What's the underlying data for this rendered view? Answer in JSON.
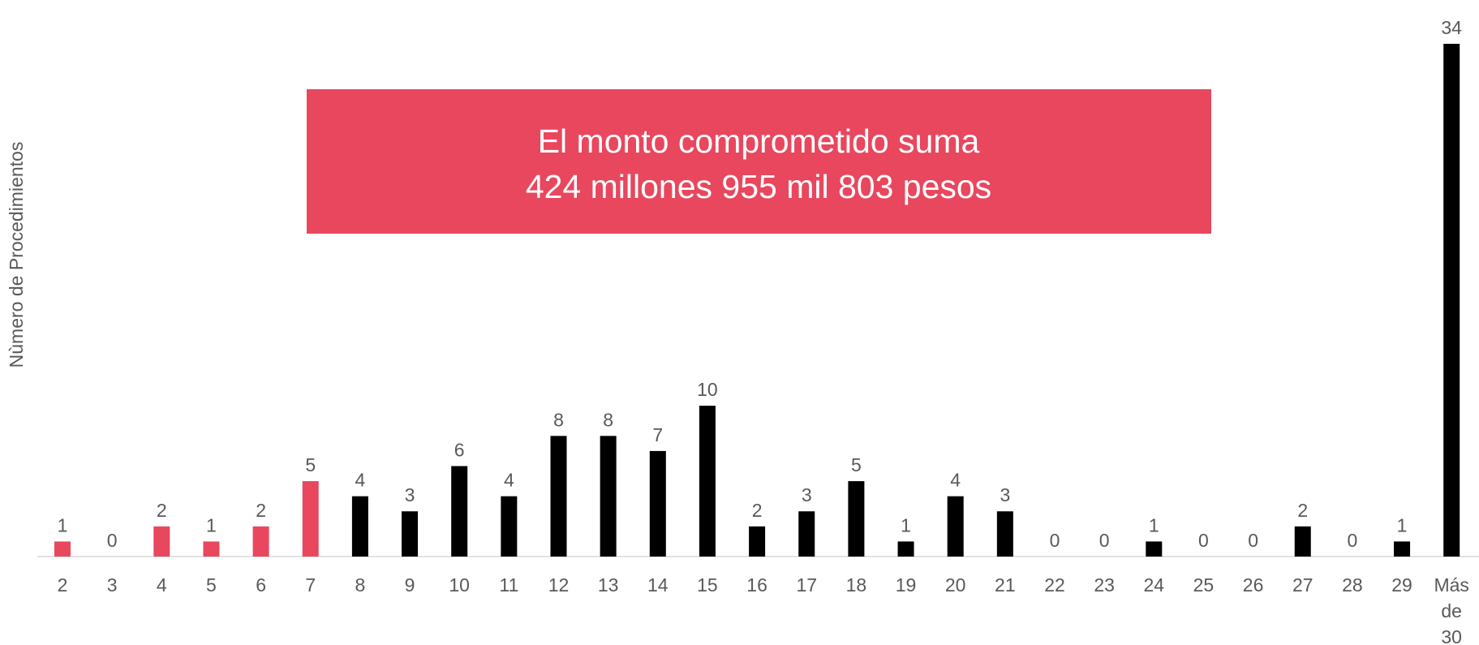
{
  "chart_data": {
    "type": "bar",
    "y_axis_label": "Nùmero de Procedimientos",
    "annotation": [
      "El monto comprometido suma",
      "424 millones 955 mil 803 pesos"
    ],
    "annotation_color": "#e8475e",
    "categories": [
      "2",
      "3",
      "4",
      "5",
      "6",
      "7",
      "8",
      "9",
      "10",
      "11",
      "12",
      "13",
      "14",
      "15",
      "16",
      "17",
      "18",
      "19",
      "20",
      "21",
      "22",
      "23",
      "24",
      "25",
      "26",
      "27",
      "28",
      "29",
      "Más de 30"
    ],
    "values": [
      1,
      0,
      2,
      1,
      2,
      5,
      4,
      3,
      6,
      4,
      8,
      8,
      7,
      10,
      2,
      3,
      5,
      1,
      4,
      3,
      0,
      0,
      1,
      0,
      0,
      2,
      0,
      1,
      34
    ],
    "colors": [
      "#e8475e",
      "#e8475e",
      "#e8475e",
      "#e8475e",
      "#e8475e",
      "#e8475e",
      "#000000",
      "#000000",
      "#000000",
      "#000000",
      "#000000",
      "#000000",
      "#000000",
      "#000000",
      "#000000",
      "#000000",
      "#000000",
      "#000000",
      "#000000",
      "#000000",
      "#000000",
      "#000000",
      "#000000",
      "#000000",
      "#000000",
      "#000000",
      "#000000",
      "#000000",
      "#000000"
    ],
    "ylim": [
      0,
      34
    ]
  }
}
